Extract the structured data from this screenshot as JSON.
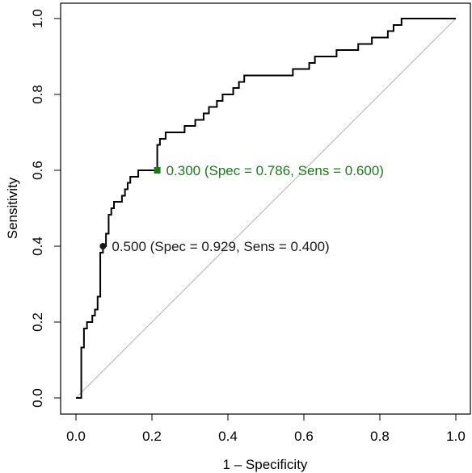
{
  "chart_data": {
    "type": "line",
    "title": "",
    "xlabel": "1 – Specificity",
    "ylabel": "Sensitivity",
    "xlim": [
      0.0,
      1.0
    ],
    "ylim": [
      0.0,
      1.0
    ],
    "x_ticks": [
      {
        "value": 0.0,
        "label": "0.0"
      },
      {
        "value": 0.2,
        "label": "0.2"
      },
      {
        "value": 0.4,
        "label": "0.4"
      },
      {
        "value": 0.6,
        "label": "0.6"
      },
      {
        "value": 0.8,
        "label": "0.8"
      },
      {
        "value": 1.0,
        "label": "1.0"
      }
    ],
    "y_ticks": [
      {
        "value": 0.0,
        "label": "0.0"
      },
      {
        "value": 0.2,
        "label": "0.2"
      },
      {
        "value": 0.4,
        "label": "0.4"
      },
      {
        "value": 0.6,
        "label": "0.6"
      },
      {
        "value": 0.8,
        "label": "0.8"
      },
      {
        "value": 1.0,
        "label": "1.0"
      }
    ],
    "grid": false,
    "reference_line": {
      "from": [
        0,
        0
      ],
      "to": [
        1,
        1
      ],
      "color": "#b3b3b3"
    },
    "roc_curve": {
      "color": "#000000",
      "points": [
        [
          0.0,
          0.0
        ],
        [
          0.014,
          0.0
        ],
        [
          0.014,
          0.133
        ],
        [
          0.021,
          0.133
        ],
        [
          0.021,
          0.183
        ],
        [
          0.029,
          0.183
        ],
        [
          0.029,
          0.2
        ],
        [
          0.043,
          0.2
        ],
        [
          0.043,
          0.217
        ],
        [
          0.05,
          0.217
        ],
        [
          0.05,
          0.233
        ],
        [
          0.057,
          0.233
        ],
        [
          0.057,
          0.267
        ],
        [
          0.064,
          0.267
        ],
        [
          0.064,
          0.383
        ],
        [
          0.071,
          0.383
        ],
        [
          0.071,
          0.4
        ],
        [
          0.079,
          0.4
        ],
        [
          0.079,
          0.433
        ],
        [
          0.086,
          0.433
        ],
        [
          0.086,
          0.483
        ],
        [
          0.093,
          0.483
        ],
        [
          0.093,
          0.5
        ],
        [
          0.1,
          0.5
        ],
        [
          0.1,
          0.517
        ],
        [
          0.121,
          0.517
        ],
        [
          0.121,
          0.533
        ],
        [
          0.129,
          0.533
        ],
        [
          0.129,
          0.55
        ],
        [
          0.136,
          0.55
        ],
        [
          0.136,
          0.567
        ],
        [
          0.143,
          0.567
        ],
        [
          0.143,
          0.583
        ],
        [
          0.164,
          0.583
        ],
        [
          0.164,
          0.6
        ],
        [
          0.214,
          0.6
        ],
        [
          0.214,
          0.667
        ],
        [
          0.221,
          0.667
        ],
        [
          0.221,
          0.683
        ],
        [
          0.236,
          0.683
        ],
        [
          0.236,
          0.7
        ],
        [
          0.286,
          0.7
        ],
        [
          0.286,
          0.717
        ],
        [
          0.314,
          0.717
        ],
        [
          0.314,
          0.733
        ],
        [
          0.336,
          0.733
        ],
        [
          0.336,
          0.75
        ],
        [
          0.35,
          0.75
        ],
        [
          0.35,
          0.767
        ],
        [
          0.371,
          0.767
        ],
        [
          0.371,
          0.783
        ],
        [
          0.386,
          0.783
        ],
        [
          0.386,
          0.8
        ],
        [
          0.414,
          0.8
        ],
        [
          0.414,
          0.817
        ],
        [
          0.429,
          0.817
        ],
        [
          0.429,
          0.833
        ],
        [
          0.443,
          0.833
        ],
        [
          0.443,
          0.85
        ],
        [
          0.571,
          0.85
        ],
        [
          0.571,
          0.867
        ],
        [
          0.614,
          0.867
        ],
        [
          0.614,
          0.883
        ],
        [
          0.629,
          0.883
        ],
        [
          0.629,
          0.9
        ],
        [
          0.686,
          0.9
        ],
        [
          0.686,
          0.917
        ],
        [
          0.743,
          0.917
        ],
        [
          0.743,
          0.933
        ],
        [
          0.779,
          0.933
        ],
        [
          0.779,
          0.95
        ],
        [
          0.821,
          0.95
        ],
        [
          0.821,
          0.967
        ],
        [
          0.836,
          0.967
        ],
        [
          0.836,
          0.983
        ],
        [
          0.857,
          0.983
        ],
        [
          0.857,
          1.0
        ],
        [
          1.0,
          1.0
        ]
      ]
    },
    "highlighted_points": [
      {
        "x": 0.071,
        "y": 0.4,
        "marker": "circle",
        "color": "#1a1a1a",
        "label": "0.500 (Spec = 0.929, Sens = 0.400)"
      },
      {
        "x": 0.214,
        "y": 0.6,
        "marker": "square",
        "color": "#1a7a1a",
        "label": "0.300 (Spec = 0.786, Sens = 0.600)"
      }
    ]
  }
}
